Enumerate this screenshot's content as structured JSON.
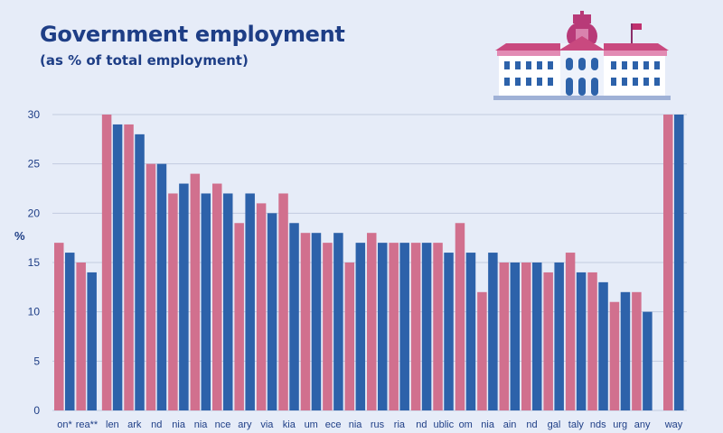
{
  "header": {
    "title": "Government employment",
    "subtitle": "(as % of total employment)"
  },
  "chart_data": {
    "type": "bar",
    "title": "Government employment",
    "subtitle": "(as % of total employment)",
    "ylabel": "%",
    "ylim": [
      0,
      30
    ],
    "yticks": [
      0,
      5,
      10,
      15,
      20,
      25,
      30
    ],
    "grid": true,
    "categories": [
      "on*",
      "rea**",
      "len",
      "ark",
      "nd",
      "nia",
      "nia",
      "nce",
      "ary",
      "via",
      "kia",
      "um",
      "ece",
      "nia",
      "rus",
      "ria",
      "nd",
      "ublic",
      "om",
      "nia",
      "ain",
      "nd",
      "gal",
      "taly",
      "nds",
      "urg",
      "any",
      "way"
    ],
    "series": [
      {
        "color": "#d1708e",
        "values": [
          17,
          15,
          30,
          29,
          25,
          22,
          24,
          23,
          19,
          21,
          22,
          18,
          17,
          15,
          18,
          17,
          17,
          17,
          19,
          12,
          15,
          15,
          14,
          16,
          14,
          11,
          12,
          30
        ]
      },
      {
        "color": "#2d62aa",
        "values": [
          16,
          14,
          29,
          28,
          25,
          23,
          22,
          22,
          22,
          20,
          19,
          18,
          18,
          17,
          17,
          17,
          17,
          16,
          16,
          16,
          15,
          15,
          15,
          14,
          13,
          12,
          10,
          30
        ]
      }
    ]
  },
  "colors": {
    "background": "#e6ecf8",
    "text": "#1e3e86",
    "grid": "#c2cbe0",
    "pink_bar": "#d1708e",
    "blue_bar": "#2d62aa"
  },
  "icons": {
    "illustration": "government-building-icon"
  }
}
